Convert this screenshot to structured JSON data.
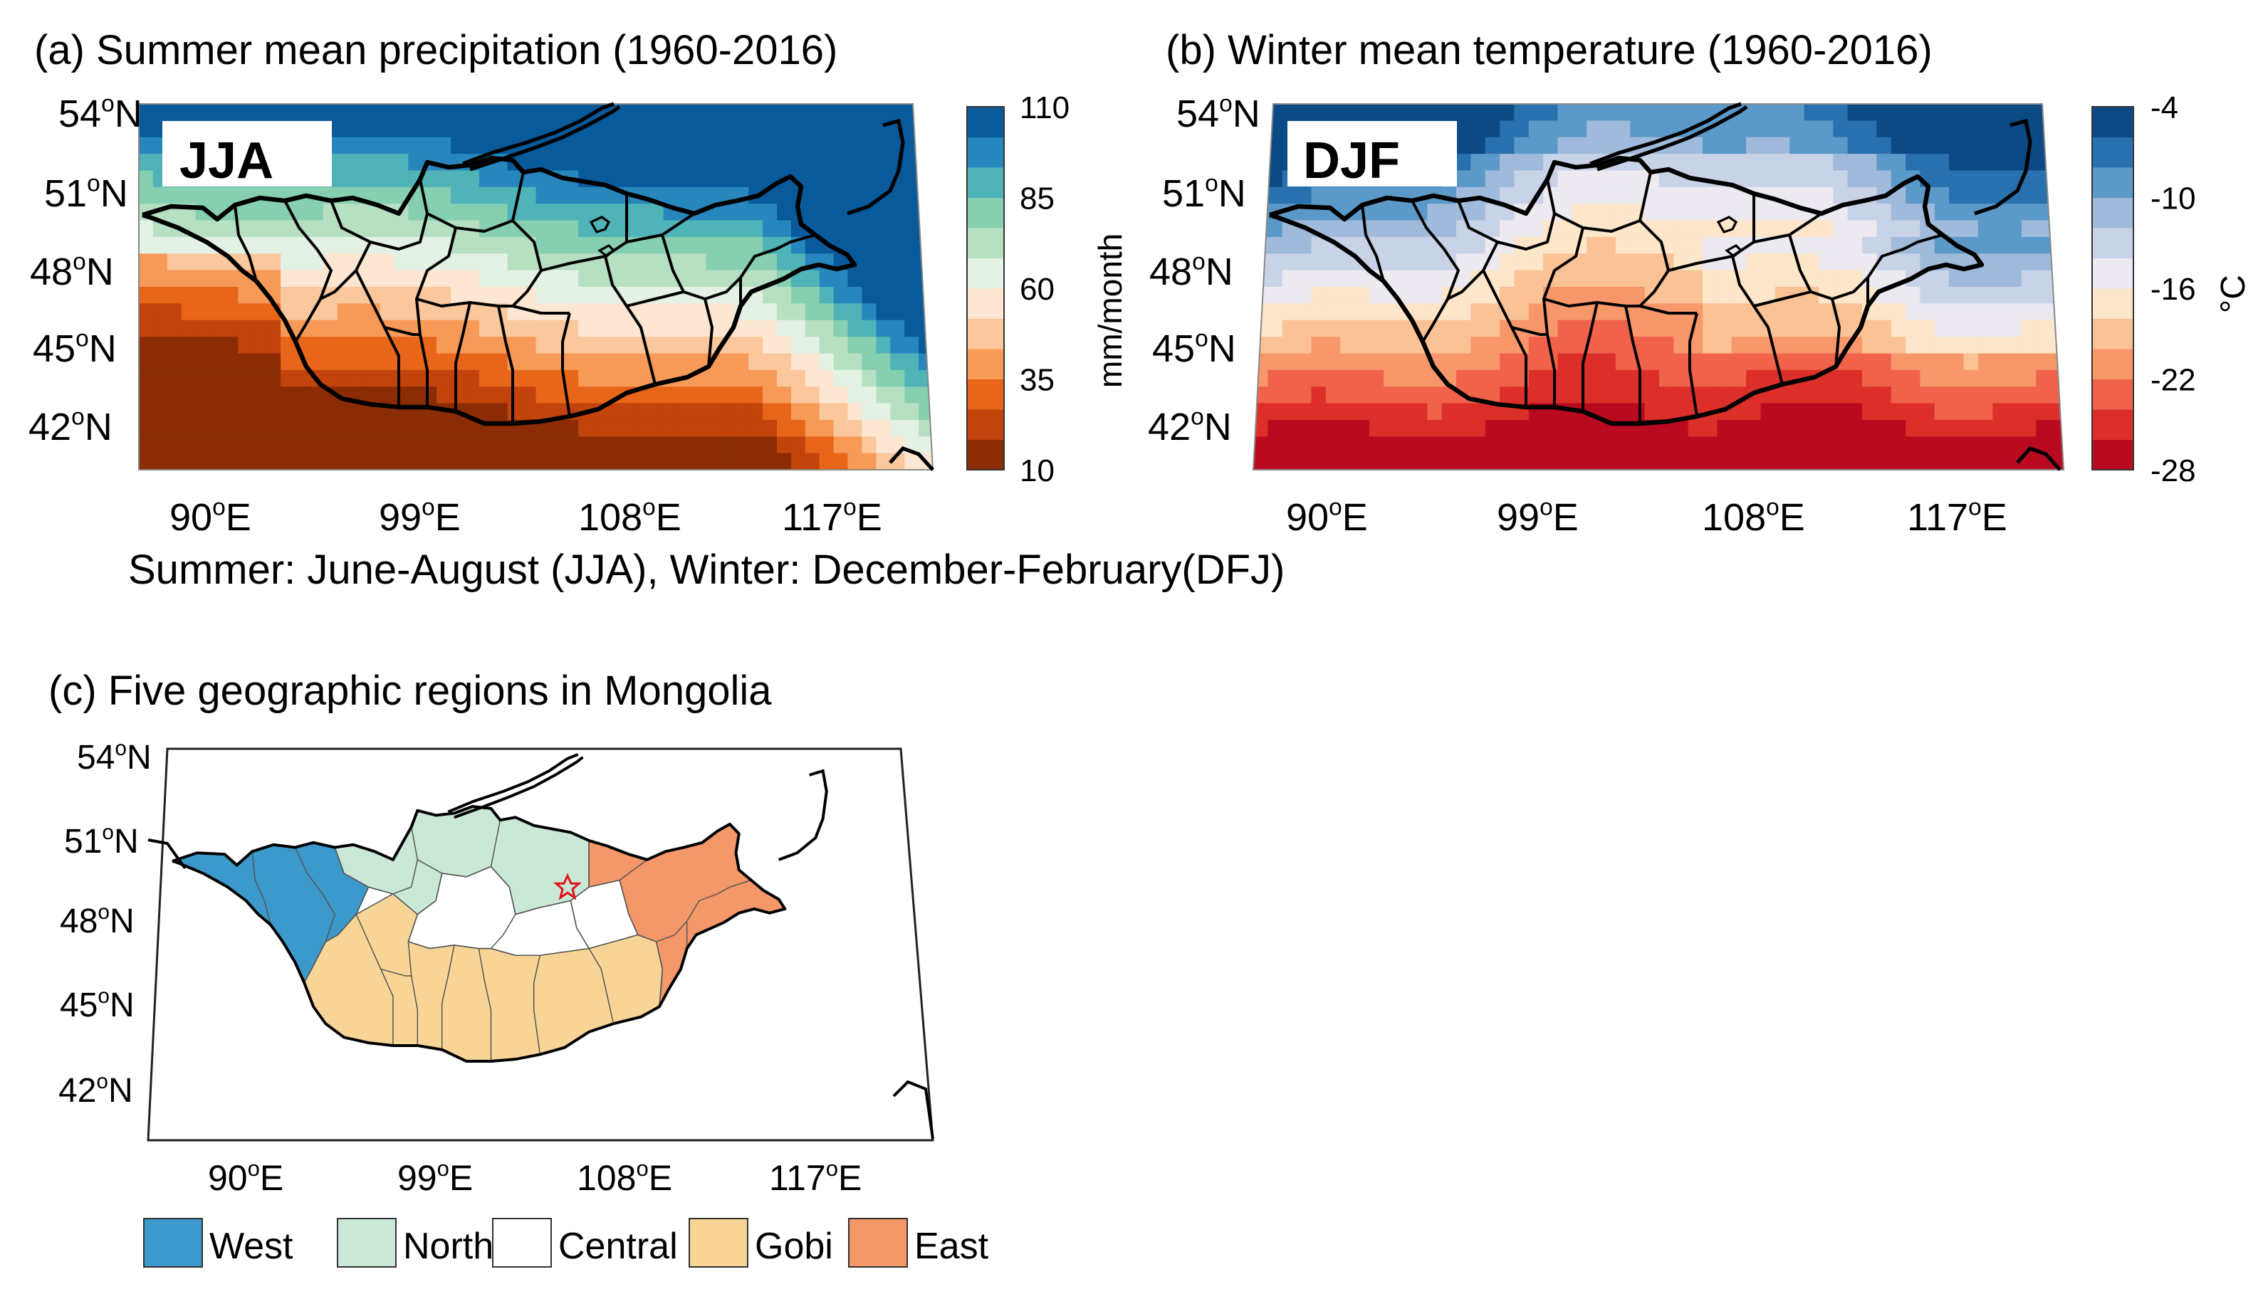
{
  "panel_a": {
    "title": "(a) Summer mean precipitation (1960-2016)",
    "badge": "JJA",
    "unit": "mm/month",
    "colorbar_ticks": [
      "110",
      "85",
      "60",
      "35",
      "10"
    ],
    "colors": [
      "#8b2c04",
      "#c2430c",
      "#e8661a",
      "#f79a58",
      "#fbc79c",
      "#fde6d2",
      "#e3f2e4",
      "#b7e0c3",
      "#86cfb0",
      "#4fb3b8",
      "#2787bd",
      "#085a9a"
    ],
    "range": [
      10,
      110
    ]
  },
  "panel_b": {
    "title": "(b) Winter mean temperature (1960-2016)",
    "badge": "DJF",
    "unit": "°C",
    "colorbar_ticks": [
      "-4",
      "-10",
      "-16",
      "-22",
      "-28"
    ],
    "colors": [
      "#ba0a1f",
      "#dd2f2a",
      "#f0634a",
      "#f8976a",
      "#fbc295",
      "#fde6c9",
      "#ece9f1",
      "#c9d3e8",
      "#9fbadb",
      "#5b99c9",
      "#2871ae",
      "#0c4a85"
    ],
    "range": [
      -4,
      -28
    ]
  },
  "caption": "Summer: June-August (JJA), Winter: December-February(DFJ)",
  "panel_c": {
    "title": "(c) Five geographic regions in Mongolia",
    "legend": [
      {
        "label": "West",
        "color": "#3c99cc"
      },
      {
        "label": "North",
        "color": "#c9e9d6"
      },
      {
        "label": "Central",
        "color": "#ffffff"
      },
      {
        "label": "Gobi",
        "color": "#f8d597"
      },
      {
        "label": "East",
        "color": "#f4986a"
      }
    ]
  },
  "axes": {
    "lat_labels": [
      "54",
      "51",
      "48",
      "45",
      "42"
    ],
    "lon_labels": [
      "90",
      "99",
      "108",
      "117"
    ],
    "lat_suffix": "N",
    "lon_suffix": "E",
    "degree": "o"
  }
}
